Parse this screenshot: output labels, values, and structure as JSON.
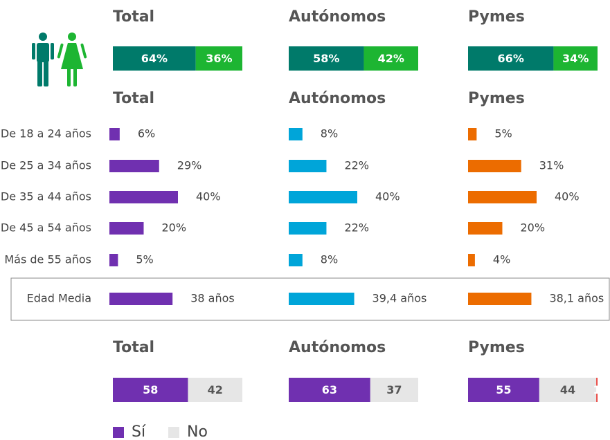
{
  "chart_data": [
    {
      "type": "stacked-100",
      "colors": [
        "#007a6a",
        "#1db532"
      ],
      "panels": [
        {
          "title": "Total",
          "values": [
            64,
            36
          ],
          "value_labels": [
            "64%",
            "36%"
          ]
        },
        {
          "title": "Autónomos",
          "values": [
            58,
            42
          ],
          "value_labels": [
            "58%",
            "42%"
          ]
        },
        {
          "title": "Pymes",
          "values": [
            66,
            34
          ],
          "value_labels": [
            "66%",
            "34%"
          ]
        }
      ]
    },
    {
      "type": "hbar",
      "categories": [
        "De 18 a 24 años",
        "De 25 a 34 años",
        "De 35 a 44 años",
        "De 45 a 54 años",
        "Más de 55 años"
      ],
      "panels": [
        {
          "title": "Total",
          "color": "#7030b0",
          "values": [
            6,
            29,
            40,
            20,
            5
          ],
          "value_labels": [
            "6%",
            "29%",
            "40%",
            "20%",
            "5%"
          ]
        },
        {
          "title": "Autónomos",
          "color": "#00a5d9",
          "values": [
            8,
            22,
            40,
            22,
            8
          ],
          "value_labels": [
            "8%",
            "22%",
            "40%",
            "22%",
            "8%"
          ]
        },
        {
          "title": "Pymes",
          "color": "#ec6c00",
          "values": [
            5,
            31,
            40,
            20,
            4
          ],
          "value_labels": [
            "5%",
            "31%",
            "40%",
            "20%",
            "4%"
          ]
        }
      ],
      "summary": {
        "label": "Edad Media",
        "values": [
          38,
          39.4,
          38.1
        ],
        "value_labels": [
          "38 años",
          "39,4 años",
          "38,1 años"
        ]
      }
    },
    {
      "type": "stacked-100",
      "colors": [
        "#7030b0",
        "#e6e6e6",
        "#e8403a"
      ],
      "legend": [
        "Sí",
        "No"
      ],
      "panels": [
        {
          "title": "Total",
          "values": [
            58,
            42
          ]
        },
        {
          "title": "Autónomos",
          "values": [
            63,
            37
          ]
        },
        {
          "title": "Pymes",
          "values": [
            55,
            44,
            1
          ]
        }
      ]
    }
  ]
}
